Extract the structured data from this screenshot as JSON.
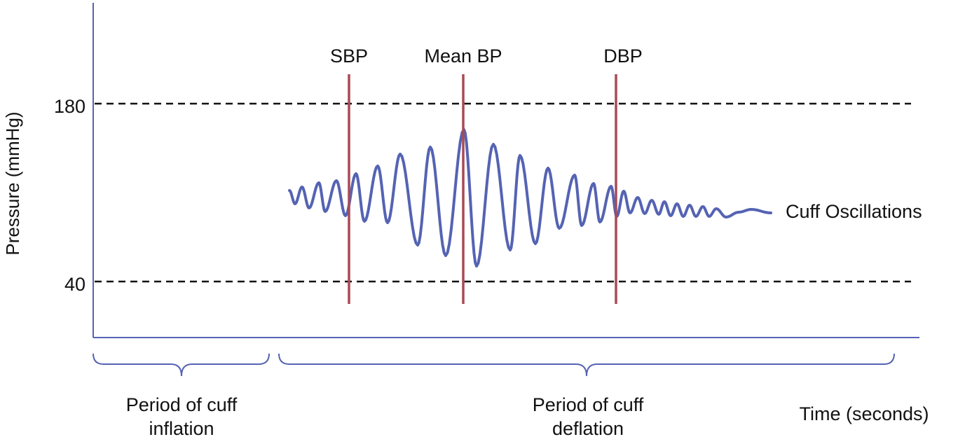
{
  "colors": {
    "axis": "#5563b3",
    "wave": "#5563b3",
    "marker": "#a84a55",
    "threshold": "#111111",
    "text": "#111111"
  },
  "y_axis": {
    "label": "Pressure (mmHg)",
    "ticks": [
      {
        "value": 180,
        "label": "180"
      },
      {
        "value": 40,
        "label": "40"
      }
    ]
  },
  "x_axis": {
    "label": "Time (seconds)"
  },
  "markers": [
    {
      "key": "sbp",
      "label": "SBP"
    },
    {
      "key": "mean",
      "label": "Mean BP"
    },
    {
      "key": "dbp",
      "label": "DBP"
    }
  ],
  "waveform": {
    "label": "Cuff Oscillations"
  },
  "periods": [
    {
      "key": "inflation",
      "line1": "Period of cuff",
      "line2": "inflation"
    },
    {
      "key": "deflation",
      "line1": "Period of cuff",
      "line2": "deflation"
    }
  ]
}
